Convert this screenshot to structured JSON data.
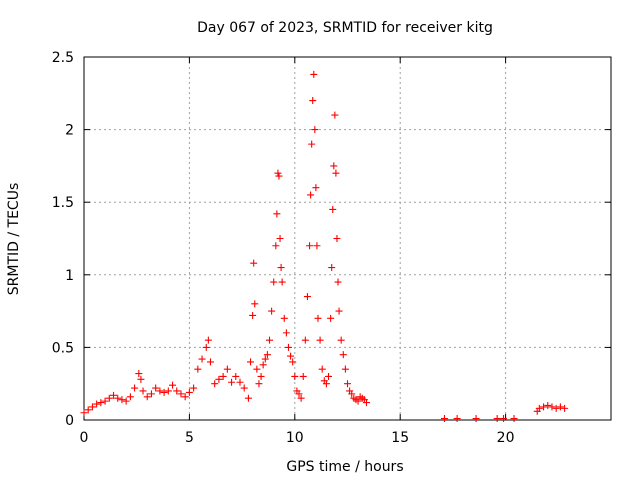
{
  "chart_data": {
    "type": "scatter",
    "title": "Day 067 of 2023, SRMTID for receiver kitg",
    "xlabel": "GPS time / hours",
    "ylabel": "SRMTID / TECUs",
    "xlim": [
      0,
      25
    ],
    "ylim": [
      0,
      2.5
    ],
    "x_ticks": [
      0,
      5,
      10,
      15,
      20
    ],
    "x_tick_labels": [
      "0",
      "5",
      "10",
      "15",
      "20"
    ],
    "y_ticks": [
      0,
      0.5,
      1,
      1.5,
      2,
      2.5
    ],
    "y_tick_labels": [
      "0",
      "0.5",
      "1",
      "1.5",
      "2",
      "2.5"
    ],
    "grid": true,
    "marker": "+",
    "marker_color": "#ff0000",
    "series": [
      {
        "name": "kitg",
        "x": [
          0.0,
          0.2,
          0.4,
          0.6,
          0.8,
          1.0,
          1.2,
          1.4,
          1.6,
          1.8,
          2.0,
          2.2,
          2.4,
          2.6,
          2.7,
          2.8,
          3.0,
          3.2,
          3.4,
          3.6,
          3.8,
          4.0,
          4.2,
          4.4,
          4.6,
          4.8,
          5.0,
          5.2,
          5.4,
          5.6,
          5.8,
          5.9,
          6.0,
          6.2,
          6.4,
          6.6,
          6.8,
          7.0,
          7.2,
          7.4,
          7.6,
          7.8,
          7.9,
          8.0,
          8.05,
          8.1,
          8.2,
          8.3,
          8.4,
          8.5,
          8.6,
          8.7,
          8.8,
          8.9,
          9.0,
          9.1,
          9.15,
          9.2,
          9.25,
          9.3,
          9.35,
          9.4,
          9.5,
          9.6,
          9.7,
          9.8,
          9.9,
          10.0,
          10.1,
          10.2,
          10.3,
          10.4,
          10.5,
          10.6,
          10.7,
          10.75,
          10.8,
          10.85,
          10.9,
          10.95,
          11.0,
          11.05,
          11.1,
          11.2,
          11.3,
          11.4,
          11.5,
          11.6,
          11.7,
          11.75,
          11.8,
          11.85,
          11.9,
          11.95,
          12.0,
          12.05,
          12.1,
          12.2,
          12.3,
          12.4,
          12.5,
          12.6,
          12.7,
          12.8,
          12.9,
          13.0,
          13.1,
          13.2,
          13.3,
          13.4,
          17.1,
          17.7,
          18.6,
          19.6,
          19.9,
          20.4,
          21.5,
          21.6,
          21.8,
          22.0,
          22.2,
          22.4,
          22.6,
          22.8
        ],
        "y": [
          0.05,
          0.07,
          0.09,
          0.11,
          0.12,
          0.13,
          0.15,
          0.17,
          0.15,
          0.14,
          0.13,
          0.16,
          0.22,
          0.32,
          0.28,
          0.2,
          0.16,
          0.18,
          0.22,
          0.2,
          0.19,
          0.2,
          0.24,
          0.2,
          0.18,
          0.16,
          0.19,
          0.22,
          0.35,
          0.42,
          0.5,
          0.55,
          0.4,
          0.25,
          0.28,
          0.3,
          0.35,
          0.26,
          0.3,
          0.26,
          0.22,
          0.15,
          0.4,
          0.72,
          1.08,
          0.8,
          0.35,
          0.25,
          0.3,
          0.38,
          0.42,
          0.45,
          0.55,
          0.75,
          0.95,
          1.2,
          1.42,
          1.7,
          1.68,
          1.25,
          1.05,
          0.95,
          0.7,
          0.6,
          0.5,
          0.44,
          0.4,
          0.3,
          0.2,
          0.18,
          0.15,
          0.3,
          0.55,
          0.85,
          1.2,
          1.55,
          1.9,
          2.2,
          2.38,
          2.0,
          1.6,
          1.2,
          0.7,
          0.55,
          0.35,
          0.27,
          0.25,
          0.3,
          0.7,
          1.05,
          1.45,
          1.75,
          2.1,
          1.7,
          1.25,
          0.95,
          0.75,
          0.55,
          0.45,
          0.35,
          0.25,
          0.2,
          0.18,
          0.15,
          0.14,
          0.13,
          0.16,
          0.15,
          0.14,
          0.12,
          0.01,
          0.01,
          0.01,
          0.01,
          0.01,
          0.01,
          0.06,
          0.08,
          0.09,
          0.1,
          0.09,
          0.08,
          0.09,
          0.08
        ]
      }
    ]
  }
}
